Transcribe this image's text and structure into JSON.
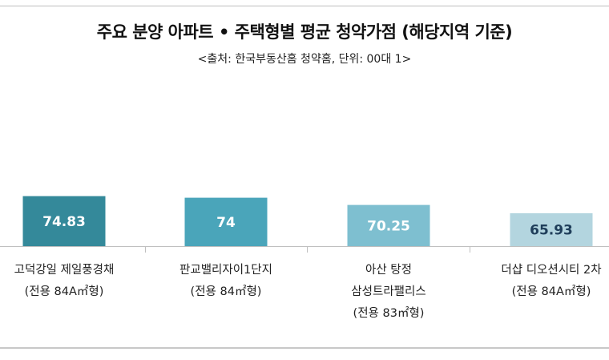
{
  "title": "주요 분양 아파트 • 주택형별 평균 청약가점 (해당지역 기준)",
  "subtitle": "<출처: 한국부동산홈 청약홈, 단위: 00대 1>",
  "chart_data": {
    "type": "bar",
    "title": "주요 분양 아파트 • 주택형별 평균 청약가점 (해당지역 기준)",
    "subtitle": "<출처: 한국부동산홈 청약홈, 단위: 00대 1>",
    "categories": [
      [
        "고덕강일 제일풍경채",
        "(전용 84A㎡형)"
      ],
      [
        "판교밸리자이1단지",
        "(전용 84㎡형)"
      ],
      [
        "아산 탕정",
        "삼성트라팰리스",
        "(전용 83㎡형)"
      ],
      [
        "더샵 디오션시티 2차",
        "(전용 84A㎡형)"
      ]
    ],
    "values": [
      74.83,
      74,
      70.25,
      65.93
    ],
    "value_labels": [
      "74.83",
      "74",
      "70.25",
      "65.93"
    ],
    "colors": [
      "#34899a",
      "#4aa5ba",
      "#7ebfd0",
      "#b3d5df"
    ],
    "value_label_colors": [
      "#ffffff",
      "#ffffff",
      "#ffffff",
      "#1f3e5a"
    ],
    "xlabel": "",
    "ylabel": "",
    "ylim": [
      0,
      80
    ],
    "grid": false,
    "legend": "none"
  }
}
